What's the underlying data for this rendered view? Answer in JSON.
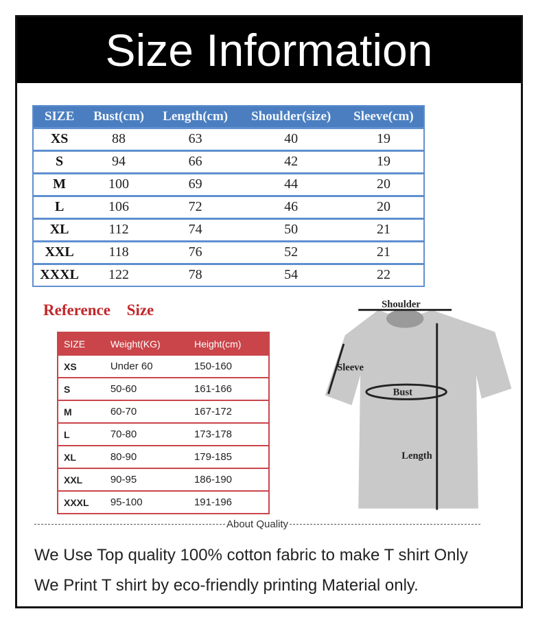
{
  "title": "Size Information",
  "size_table": {
    "headers": [
      "SIZE",
      "Bust(cm)",
      "Length(cm)",
      "Shoulder(size)",
      "Sleeve(cm)"
    ],
    "rows": [
      [
        "XS",
        "88",
        "63",
        "40",
        "19"
      ],
      [
        "S",
        "94",
        "66",
        "42",
        "19"
      ],
      [
        "M",
        "100",
        "69",
        "44",
        "20"
      ],
      [
        "L",
        "106",
        "72",
        "46",
        "20"
      ],
      [
        "XL",
        "112",
        "74",
        "50",
        "21"
      ],
      [
        "XXL",
        "118",
        "76",
        "52",
        "21"
      ],
      [
        "XXXL",
        "122",
        "78",
        "54",
        "22"
      ]
    ]
  },
  "reference": {
    "title": "Reference Size",
    "headers": [
      "SIZE",
      "Weight(KG)",
      "Height(cm)"
    ],
    "rows": [
      [
        "XS",
        "Under 60",
        "150-160"
      ],
      [
        "S",
        "50-60",
        "161-166"
      ],
      [
        "M",
        "60-70",
        "167-172"
      ],
      [
        "L",
        "70-80",
        "173-178"
      ],
      [
        "XL",
        "80-90",
        "179-185"
      ],
      [
        "XXL",
        "90-95",
        "186-190"
      ],
      [
        "XXXL",
        "95-100",
        "191-196"
      ]
    ]
  },
  "diagram": {
    "shoulder": "Shoulder",
    "sleeve": "Sleeve",
    "bust": "Bust",
    "length": "Length"
  },
  "quality": {
    "heading": "About Quality",
    "line1": "We Use Top quality 100% cotton fabric to make T shirt Only",
    "line2": "We Print T shirt by eco-friendly printing Material only."
  },
  "colors": {
    "blue_header": "#4a7ec0",
    "red_header": "#c9454a",
    "reference_title": "#c0282c"
  }
}
